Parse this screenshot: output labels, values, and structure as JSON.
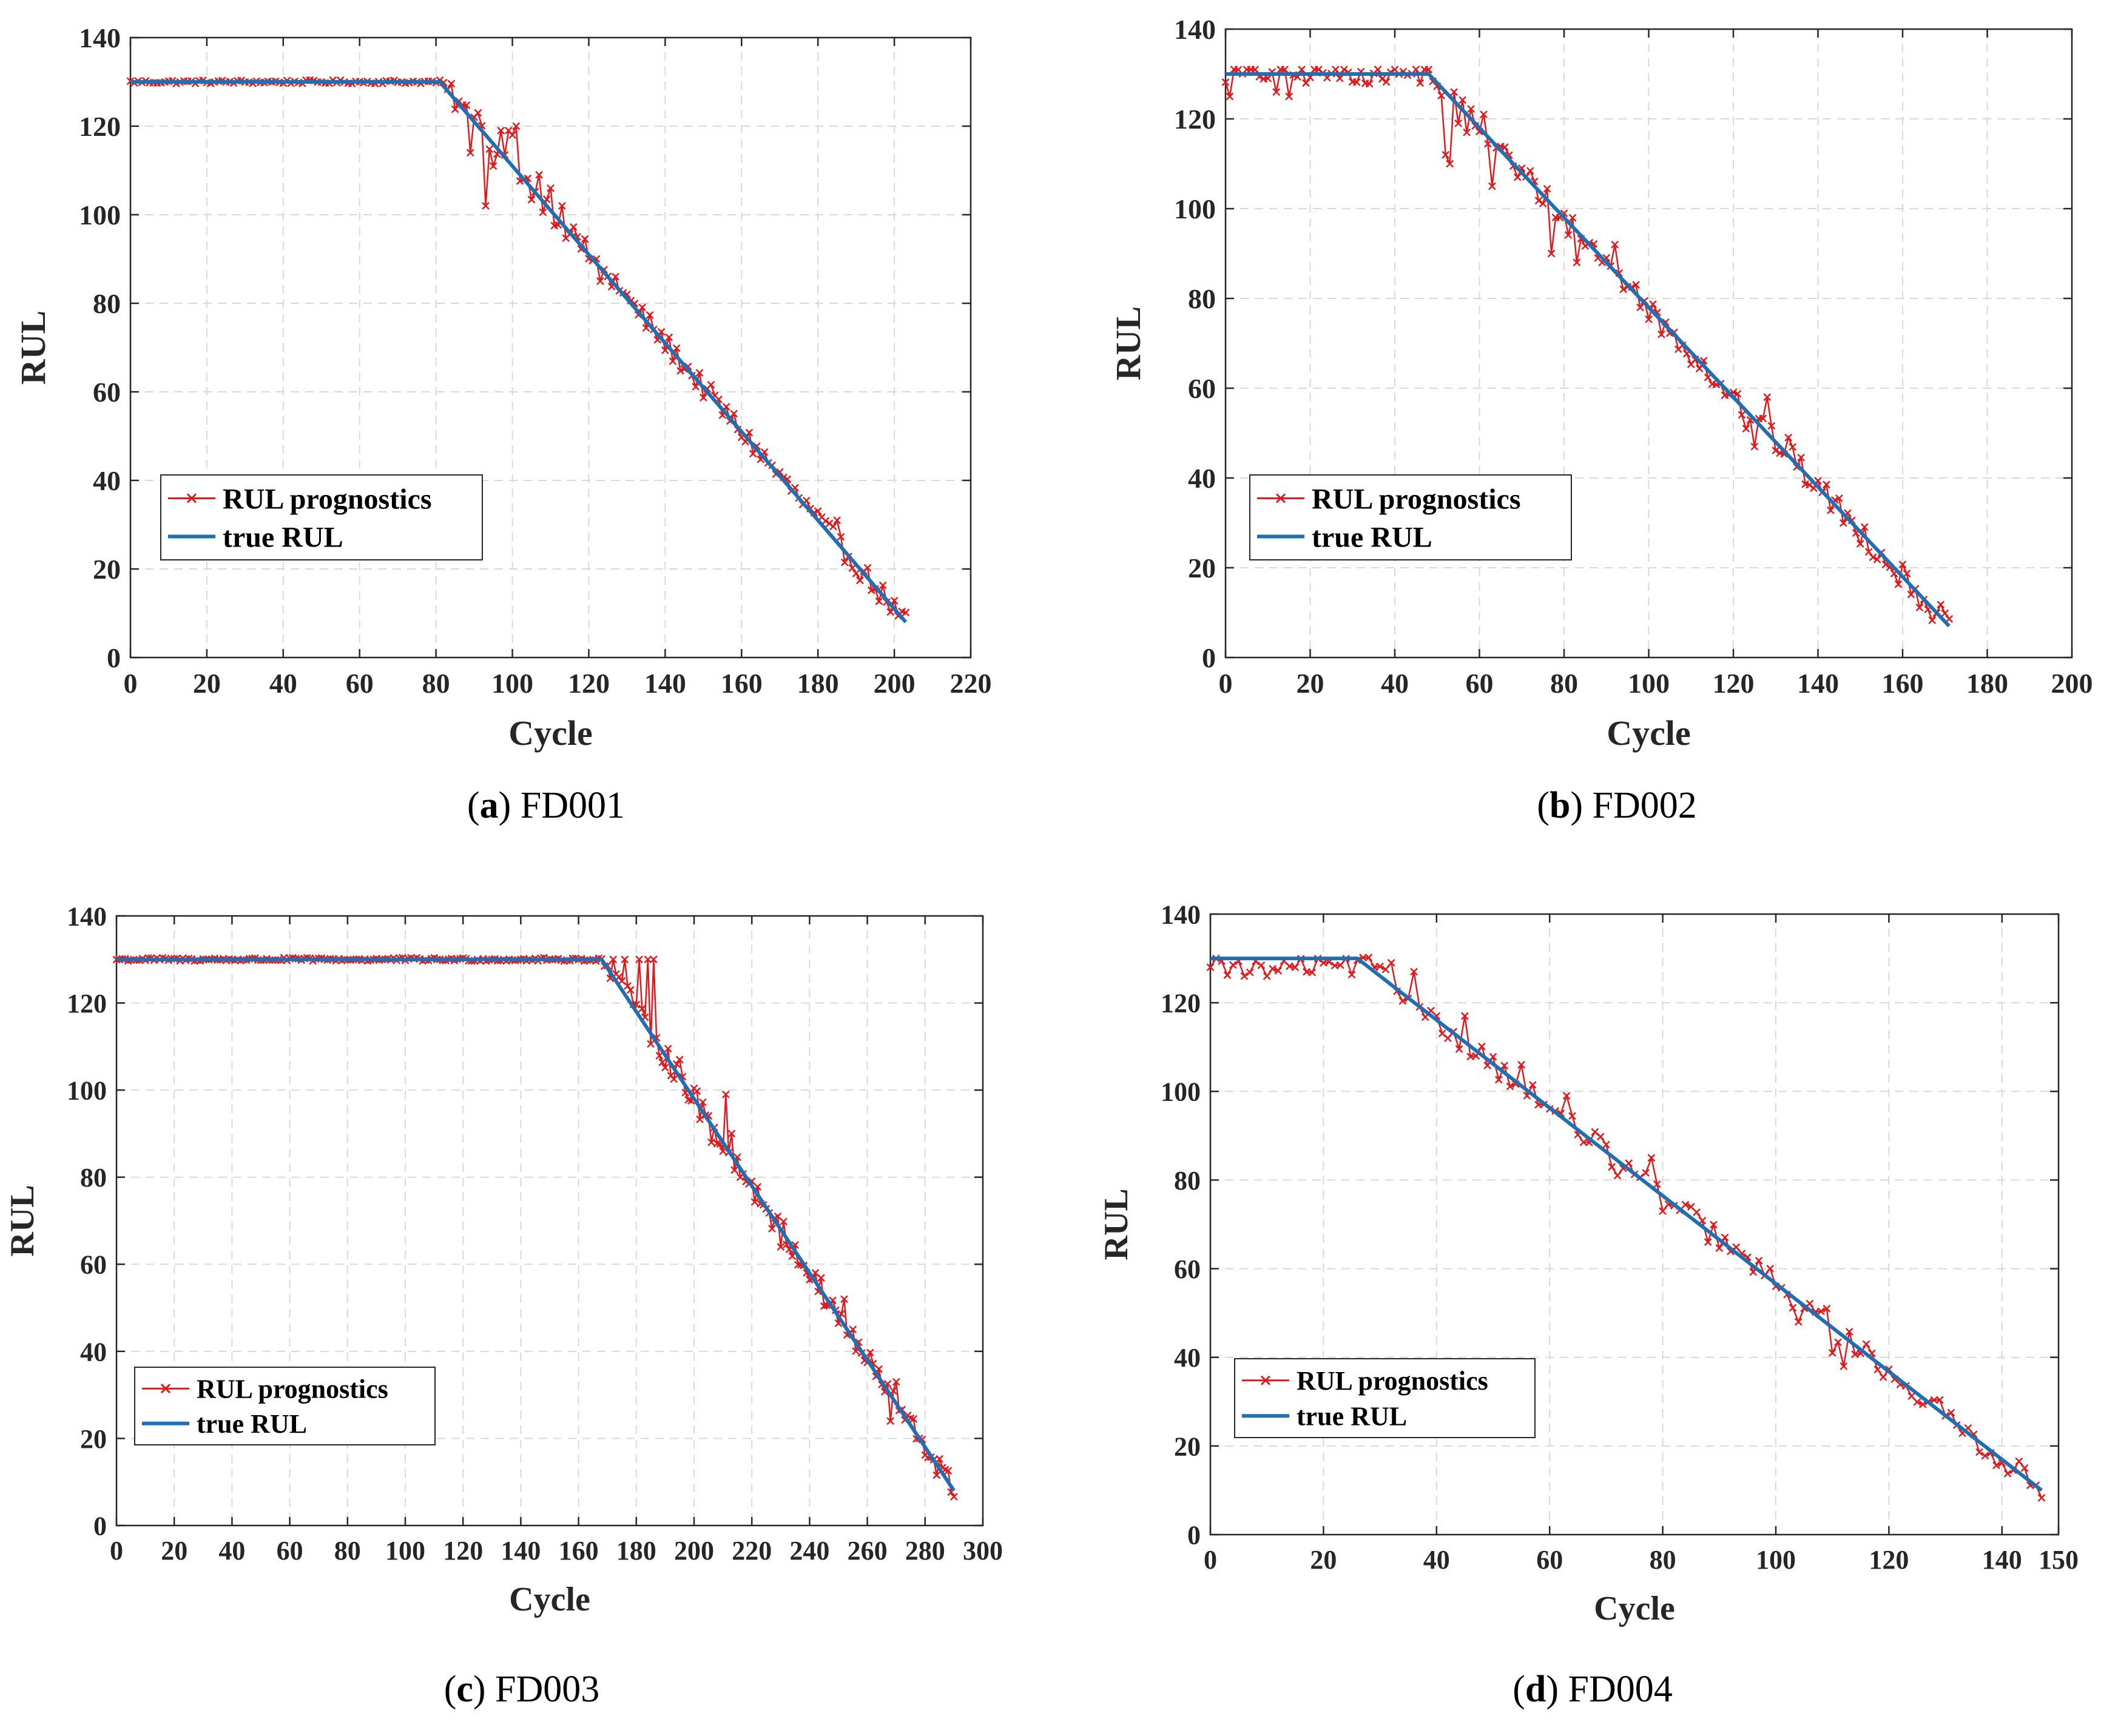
{
  "colors": {
    "prognostics": "#e0191c",
    "true_rul": "#1f6fb5",
    "grid": "#d9d9d9",
    "axis": "#262626"
  },
  "chart_data": [
    {
      "id": "a",
      "type": "line",
      "caption_letter": "a",
      "caption_name": "FD001",
      "xlabel": "Cycle",
      "ylabel": "RUL",
      "xlim": [
        0,
        220
      ],
      "ylim": [
        0,
        140
      ],
      "xticks": [
        0,
        20,
        40,
        60,
        80,
        100,
        120,
        140,
        160,
        180,
        200,
        220
      ],
      "yticks": [
        0,
        20,
        40,
        60,
        80,
        100,
        120,
        140
      ],
      "legend": [
        "RUL prognostics",
        "true RUL"
      ],
      "legend_location": "lower-left",
      "true_rul": {
        "plateau": 130,
        "knee": 81,
        "end_cycle": 203,
        "end_value": 8
      },
      "prognostics_pattern": "noisy-tracking",
      "prognostics_noise": 4.0,
      "anomalies": [
        [
          89,
          114
        ],
        [
          90,
          122
        ],
        [
          91,
          123
        ],
        [
          93,
          102
        ],
        [
          95,
          111
        ],
        [
          97,
          119
        ],
        [
          99,
          119
        ],
        [
          100,
          118
        ],
        [
          101,
          120
        ],
        [
          103,
          108
        ],
        [
          107,
          109
        ],
        [
          110,
          106
        ],
        [
          113,
          102
        ],
        [
          117,
          95
        ],
        [
          123,
          85
        ],
        [
          127,
          86
        ],
        [
          185,
          31
        ]
      ]
    },
    {
      "id": "b",
      "type": "line",
      "caption_letter": "b",
      "caption_name": "FD002",
      "xlabel": "Cycle",
      "ylabel": "RUL",
      "xlim": [
        0,
        200
      ],
      "ylim": [
        0,
        140
      ],
      "xticks": [
        0,
        20,
        40,
        60,
        80,
        100,
        120,
        140,
        160,
        180,
        200
      ],
      "yticks": [
        0,
        20,
        40,
        60,
        80,
        100,
        120,
        140
      ],
      "legend": [
        "RUL prognostics",
        "true RUL"
      ],
      "legend_location": "lower-left",
      "true_rul": {
        "plateau": 130,
        "knee": 48,
        "end_cycle": 171,
        "end_value": 7
      },
      "prognostics_pattern": "noisy-tracking",
      "prognostics_noise": 4.5,
      "anomalies": [
        [
          1,
          125
        ],
        [
          7,
          131
        ],
        [
          12,
          126
        ],
        [
          15,
          125
        ],
        [
          22,
          131
        ],
        [
          48,
          131
        ],
        [
          52,
          112
        ],
        [
          53,
          110
        ],
        [
          55,
          119
        ],
        [
          57,
          117
        ],
        [
          61,
          121
        ],
        [
          63,
          105
        ],
        [
          69,
          107
        ],
        [
          77,
          90
        ],
        [
          79,
          98
        ],
        [
          83,
          88
        ],
        [
          92,
          92
        ],
        [
          103,
          72
        ],
        [
          123,
          51
        ],
        [
          125,
          47
        ],
        [
          128,
          58
        ],
        [
          133,
          49
        ]
      ]
    },
    {
      "id": "c",
      "type": "line",
      "caption_letter": "c",
      "caption_name": "FD003",
      "xlabel": "Cycle",
      "ylabel": "RUL",
      "xlim": [
        0,
        300
      ],
      "ylim": [
        0,
        140
      ],
      "xticks": [
        0,
        20,
        40,
        60,
        80,
        100,
        120,
        140,
        160,
        180,
        200,
        220,
        240,
        260,
        280,
        300
      ],
      "yticks": [
        0,
        20,
        40,
        60,
        80,
        100,
        120,
        140
      ],
      "legend": [
        "RUL prognostics",
        "true RUL"
      ],
      "legend_location": "lower-left",
      "true_rul": {
        "plateau": 130,
        "knee": 168,
        "end_cycle": 290,
        "end_value": 8
      },
      "prognostics_pattern": "noisy-tracking",
      "prognostics_noise": 4.5,
      "anomalies": [
        [
          172,
          130
        ],
        [
          174,
          126
        ],
        [
          176,
          130
        ],
        [
          178,
          123
        ],
        [
          181,
          130
        ],
        [
          184,
          130
        ],
        [
          186,
          130
        ],
        [
          187,
          112
        ],
        [
          195,
          107
        ],
        [
          206,
          88
        ],
        [
          211,
          99
        ],
        [
          213,
          90
        ],
        [
          216,
          80
        ],
        [
          230,
          64
        ],
        [
          242,
          58
        ],
        [
          252,
          52
        ],
        [
          268,
          24
        ],
        [
          270,
          33
        ]
      ]
    },
    {
      "id": "d",
      "type": "line",
      "caption_letter": "d",
      "caption_name": "FD004",
      "xlabel": "Cycle",
      "ylabel": "RUL",
      "xlim": [
        0,
        150
      ],
      "ylim": [
        0,
        140
      ],
      "xticks": [
        0,
        20,
        40,
        60,
        80,
        100,
        120,
        140,
        150
      ],
      "yticks": [
        0,
        20,
        40,
        60,
        80,
        100,
        120,
        140
      ],
      "legend": [
        "RUL prognostics",
        "true RUL"
      ],
      "legend_location": "lower-left",
      "true_rul": {
        "plateau": 130,
        "knee": 26,
        "end_cycle": 147,
        "end_value": 10
      },
      "prognostics_pattern": "noisy-tracking",
      "prognostics_noise": 4.0,
      "anomalies": [
        [
          0,
          128
        ],
        [
          1,
          130
        ],
        [
          6,
          126
        ],
        [
          10,
          126
        ],
        [
          15,
          128
        ],
        [
          20,
          129
        ],
        [
          29,
          128
        ],
        [
          32,
          129
        ],
        [
          36,
          127
        ],
        [
          40,
          117
        ],
        [
          42,
          112
        ],
        [
          45,
          117
        ],
        [
          47,
          108
        ],
        [
          55,
          106
        ],
        [
          58,
          97
        ],
        [
          63,
          99
        ],
        [
          72,
          81
        ],
        [
          78,
          85
        ],
        [
          80,
          73
        ],
        [
          100,
          56
        ],
        [
          104,
          48
        ],
        [
          109,
          51
        ],
        [
          110,
          41
        ],
        [
          112,
          38
        ]
      ]
    }
  ]
}
